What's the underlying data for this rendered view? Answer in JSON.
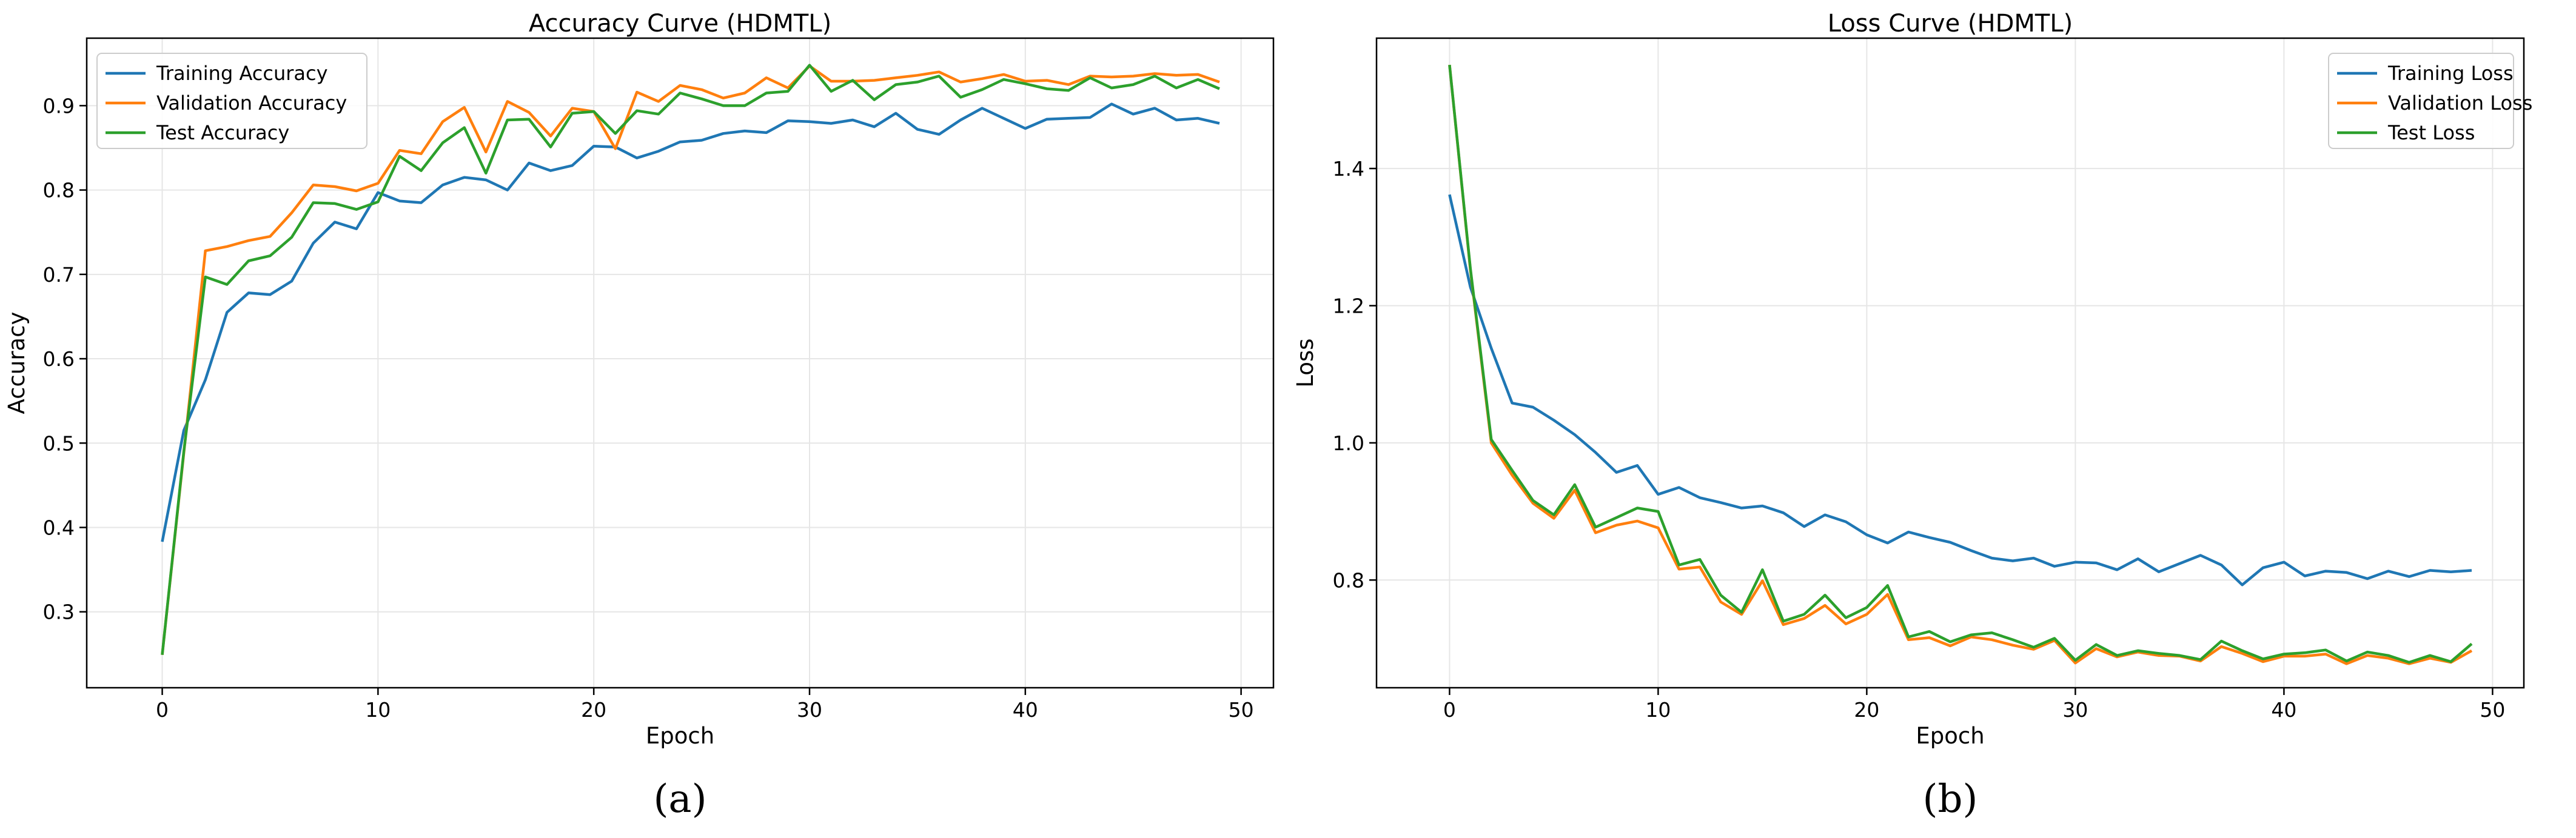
{
  "chart_data": [
    {
      "type": "line",
      "title": "Accuracy Curve (HDMTL)",
      "xlabel": "Epoch",
      "ylabel": "Accuracy",
      "panel_label": "(a)",
      "grid": true,
      "legend_position": "upper left",
      "xlim": [
        -3.5,
        51.5
      ],
      "ylim": [
        0.21,
        0.98
      ],
      "xticks": [
        0,
        10,
        20,
        30,
        40,
        50
      ],
      "yticks": [
        0.3,
        0.4,
        0.5,
        0.6,
        0.7,
        0.8,
        0.9
      ],
      "ytick_labels": [
        "0.3",
        "0.4",
        "0.5",
        "0.6",
        "0.7",
        "0.8",
        "0.9"
      ],
      "x": [
        0,
        1,
        2,
        3,
        4,
        5,
        6,
        7,
        8,
        9,
        10,
        11,
        12,
        13,
        14,
        15,
        16,
        17,
        18,
        19,
        20,
        21,
        22,
        23,
        24,
        25,
        26,
        27,
        28,
        29,
        30,
        31,
        32,
        33,
        34,
        35,
        36,
        37,
        38,
        39,
        40,
        41,
        42,
        43,
        44,
        45,
        46,
        47,
        48,
        49
      ],
      "series": [
        {
          "name": "Training Accuracy",
          "color": "#1f77b4",
          "values": [
            0.383,
            0.515,
            0.575,
            0.655,
            0.678,
            0.676,
            0.692,
            0.737,
            0.762,
            0.754,
            0.797,
            0.787,
            0.785,
            0.806,
            0.815,
            0.812,
            0.8,
            0.832,
            0.823,
            0.829,
            0.852,
            0.851,
            0.838,
            0.846,
            0.857,
            0.859,
            0.867,
            0.87,
            0.868,
            0.882,
            0.881,
            0.879,
            0.883,
            0.875,
            0.891,
            0.872,
            0.866,
            0.883,
            0.897,
            0.885,
            0.873,
            0.884,
            0.885,
            0.886,
            0.902,
            0.89,
            0.897,
            0.883,
            0.885,
            0.879
          ]
        },
        {
          "name": "Validation Accuracy",
          "color": "#ff7f0e",
          "values": [
            0.249,
            0.488,
            0.728,
            0.733,
            0.74,
            0.745,
            0.773,
            0.806,
            0.804,
            0.799,
            0.808,
            0.847,
            0.843,
            0.881,
            0.898,
            0.845,
            0.905,
            0.892,
            0.864,
            0.897,
            0.893,
            0.849,
            0.916,
            0.905,
            0.924,
            0.919,
            0.909,
            0.915,
            0.933,
            0.921,
            0.947,
            0.929,
            0.929,
            0.93,
            0.933,
            0.936,
            0.94,
            0.928,
            0.932,
            0.937,
            0.929,
            0.93,
            0.925,
            0.935,
            0.934,
            0.935,
            0.938,
            0.936,
            0.937,
            0.928
          ]
        },
        {
          "name": "Test Accuracy",
          "color": "#2ca02c",
          "values": [
            0.249,
            0.49,
            0.697,
            0.688,
            0.716,
            0.722,
            0.744,
            0.785,
            0.784,
            0.777,
            0.786,
            0.84,
            0.823,
            0.856,
            0.874,
            0.82,
            0.883,
            0.884,
            0.851,
            0.891,
            0.893,
            0.867,
            0.894,
            0.89,
            0.915,
            0.908,
            0.9,
            0.9,
            0.915,
            0.917,
            0.948,
            0.917,
            0.93,
            0.907,
            0.925,
            0.928,
            0.935,
            0.91,
            0.919,
            0.931,
            0.926,
            0.92,
            0.918,
            0.933,
            0.921,
            0.925,
            0.935,
            0.921,
            0.931,
            0.92
          ]
        }
      ]
    },
    {
      "type": "line",
      "title": "Loss Curve (HDMTL)",
      "xlabel": "Epoch",
      "ylabel": "Loss",
      "panel_label": "(b)",
      "grid": true,
      "legend_position": "upper right",
      "xlim": [
        -3.5,
        51.5
      ],
      "ylim": [
        0.643,
        1.59
      ],
      "xticks": [
        0,
        10,
        20,
        30,
        40,
        50
      ],
      "yticks": [
        0.8,
        1.0,
        1.2,
        1.4
      ],
      "ytick_labels": [
        "0.8",
        "1.0",
        "1.2",
        "1.4"
      ],
      "x": [
        0,
        1,
        2,
        3,
        4,
        5,
        6,
        7,
        8,
        9,
        10,
        11,
        12,
        13,
        14,
        15,
        16,
        17,
        18,
        19,
        20,
        21,
        22,
        23,
        24,
        25,
        26,
        27,
        28,
        29,
        30,
        31,
        32,
        33,
        34,
        35,
        36,
        37,
        38,
        39,
        40,
        41,
        42,
        43,
        44,
        45,
        46,
        47,
        48,
        49
      ],
      "series": [
        {
          "name": "Training Loss",
          "color": "#1f77b4",
          "values": [
            1.362,
            1.227,
            1.138,
            1.058,
            1.052,
            1.033,
            1.012,
            0.986,
            0.957,
            0.967,
            0.925,
            0.935,
            0.92,
            0.913,
            0.905,
            0.908,
            0.898,
            0.878,
            0.895,
            0.885,
            0.866,
            0.854,
            0.87,
            0.862,
            0.855,
            0.843,
            0.832,
            0.828,
            0.832,
            0.82,
            0.826,
            0.825,
            0.815,
            0.831,
            0.812,
            0.824,
            0.836,
            0.822,
            0.793,
            0.818,
            0.826,
            0.806,
            0.813,
            0.811,
            0.802,
            0.813,
            0.805,
            0.814,
            0.812,
            0.814
          ]
        },
        {
          "name": "Validation Loss",
          "color": "#ff7f0e",
          "values": [
            1.551,
            1.252,
            1.0,
            0.953,
            0.912,
            0.89,
            0.931,
            0.869,
            0.88,
            0.886,
            0.876,
            0.816,
            0.819,
            0.768,
            0.75,
            0.799,
            0.735,
            0.744,
            0.763,
            0.736,
            0.75,
            0.779,
            0.713,
            0.716,
            0.704,
            0.717,
            0.713,
            0.705,
            0.699,
            0.712,
            0.679,
            0.7,
            0.688,
            0.695,
            0.69,
            0.689,
            0.682,
            0.703,
            0.693,
            0.681,
            0.689,
            0.689,
            0.692,
            0.678,
            0.69,
            0.686,
            0.678,
            0.686,
            0.68,
            0.697
          ]
        },
        {
          "name": "Test Loss",
          "color": "#2ca02c",
          "values": [
            1.551,
            1.254,
            1.005,
            0.96,
            0.916,
            0.895,
            0.939,
            0.877,
            0.891,
            0.905,
            0.9,
            0.822,
            0.83,
            0.778,
            0.753,
            0.815,
            0.74,
            0.75,
            0.778,
            0.745,
            0.76,
            0.792,
            0.717,
            0.725,
            0.71,
            0.72,
            0.723,
            0.713,
            0.702,
            0.715,
            0.683,
            0.706,
            0.69,
            0.697,
            0.693,
            0.69,
            0.684,
            0.711,
            0.697,
            0.685,
            0.692,
            0.694,
            0.698,
            0.682,
            0.695,
            0.69,
            0.68,
            0.69,
            0.681,
            0.707
          ]
        }
      ]
    }
  ]
}
